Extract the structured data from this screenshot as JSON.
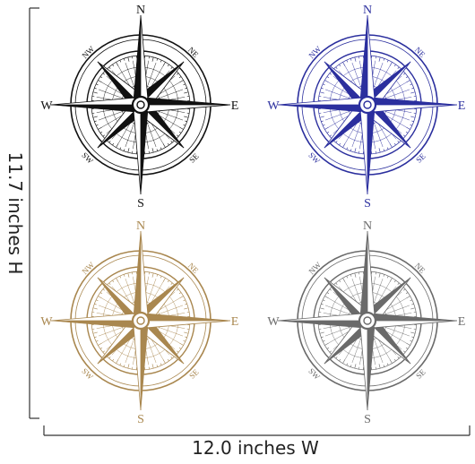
{
  "dimensions": {
    "height_label": "11.7 inches H",
    "width_label": "12.0 inches W"
  },
  "compass_labels": {
    "n": "N",
    "s": "S",
    "e": "E",
    "w": "W",
    "ne": "NE",
    "nw": "NW",
    "se": "SE",
    "sw": "SW"
  },
  "compasses": [
    {
      "id": "black",
      "color": "#111111",
      "light": "#ffffff"
    },
    {
      "id": "blue",
      "color": "#2b2f9e",
      "light": "#ffffff"
    },
    {
      "id": "tan",
      "color": "#a9874f",
      "light": "#ffffff"
    },
    {
      "id": "gray",
      "color": "#6a6a6a",
      "light": "#ffffff"
    }
  ]
}
